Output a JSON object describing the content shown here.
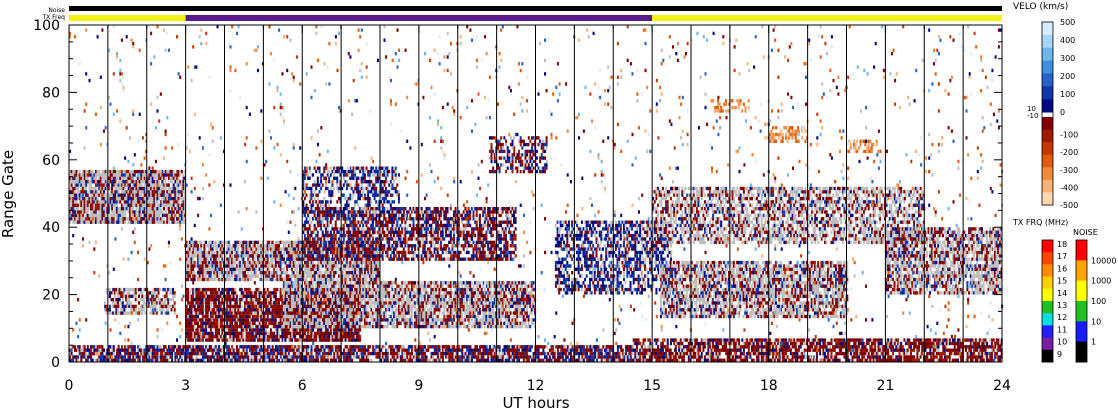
{
  "chart_data": {
    "type": "heatmap",
    "xlabel": "UT hours",
    "ylabel": "Range Gate",
    "xlim": [
      0,
      24
    ],
    "ylim": [
      0,
      100
    ],
    "x_ticks": [
      0,
      3,
      6,
      9,
      12,
      15,
      18,
      21,
      24
    ],
    "y_ticks": [
      0,
      20,
      40,
      60,
      80,
      100
    ],
    "x_minor_step": 1,
    "y_minor_step": 5,
    "scan_lines_ut": [
      1,
      2,
      3,
      4,
      5,
      6,
      7,
      8,
      9,
      10,
      11,
      12,
      13,
      14,
      15,
      16,
      17,
      18,
      19,
      20,
      21,
      22,
      23
    ],
    "grid": false,
    "header_bars": {
      "noise_label": "Noise",
      "txfreq_label": "TX Freq",
      "noise_segments": [
        {
          "start": 0,
          "end": 24,
          "color": "#000000"
        }
      ],
      "txfreq_segments": [
        {
          "start": 0,
          "end": 3,
          "color": "#f2f20a"
        },
        {
          "start": 3,
          "end": 15,
          "color": "#5a1a8c"
        },
        {
          "start": 15,
          "end": 24,
          "color": "#f2f20a"
        }
      ]
    },
    "regions": [
      {
        "x0": 0.0,
        "x1": 3.0,
        "y0": 41,
        "y1": 57,
        "kind": "mixed",
        "density": 0.9
      },
      {
        "x0": 0.9,
        "x1": 2.7,
        "y0": 14,
        "y1": 22,
        "kind": "mixed",
        "density": 0.7
      },
      {
        "x0": 0.0,
        "x1": 14.5,
        "y0": 0,
        "y1": 5,
        "kind": "redblue",
        "density": 0.8
      },
      {
        "x0": 14.5,
        "x1": 24.0,
        "y0": 0,
        "y1": 7,
        "kind": "red",
        "density": 0.75
      },
      {
        "x0": 3.0,
        "x1": 8.0,
        "y0": 24,
        "y1": 36,
        "kind": "mixed",
        "density": 0.85
      },
      {
        "x0": 3.0,
        "x1": 7.5,
        "y0": 6,
        "y1": 22,
        "kind": "red",
        "density": 0.85
      },
      {
        "x0": 5.5,
        "x1": 12.0,
        "y0": 10,
        "y1": 24,
        "kind": "mixed",
        "density": 0.8
      },
      {
        "x0": 6.0,
        "x1": 11.5,
        "y0": 30,
        "y1": 46,
        "kind": "redblue",
        "density": 0.65
      },
      {
        "x0": 6.0,
        "x1": 8.5,
        "y0": 42,
        "y1": 58,
        "kind": "blue",
        "density": 0.5
      },
      {
        "x0": 10.8,
        "x1": 12.3,
        "y0": 56,
        "y1": 67,
        "kind": "redblue",
        "density": 0.5
      },
      {
        "x0": 12.5,
        "x1": 15.5,
        "y0": 20,
        "y1": 42,
        "kind": "blue",
        "density": 0.55
      },
      {
        "x0": 15.0,
        "x1": 22.0,
        "y0": 35,
        "y1": 52,
        "kind": "mixed",
        "density": 0.6
      },
      {
        "x0": 15.2,
        "x1": 20.0,
        "y0": 13,
        "y1": 30,
        "kind": "mixed",
        "density": 0.75
      },
      {
        "x0": 21.0,
        "x1": 24.0,
        "y0": 20,
        "y1": 40,
        "kind": "mixed",
        "density": 0.75
      },
      {
        "x0": 18.0,
        "x1": 19.0,
        "y0": 65,
        "y1": 70,
        "kind": "orange",
        "density": 0.5
      },
      {
        "x0": 16.5,
        "x1": 17.5,
        "y0": 74,
        "y1": 78,
        "kind": "orange",
        "density": 0.4
      },
      {
        "x0": 20.0,
        "x1": 20.8,
        "y0": 62,
        "y1": 66,
        "kind": "orange",
        "density": 0.4
      },
      {
        "x0": 0.0,
        "x1": 24.0,
        "y0": 0,
        "y1": 100,
        "kind": "sparse",
        "density": 0.025
      }
    ],
    "velocity_colorbar": {
      "title": "VELO (km/s)",
      "positive_ticks": [
        500,
        400,
        300,
        200,
        100,
        0
      ],
      "negative_ticks": [
        -100,
        -200,
        -300,
        -400,
        -500
      ],
      "gap_labels": [
        "10",
        "-10"
      ],
      "positive_colors": [
        "#d8ecff",
        "#a8d4f8",
        "#6fb4ec",
        "#3f8fdc",
        "#2564c4",
        "#1236a8",
        "#000a80"
      ],
      "negative_colors": [
        "#800000",
        "#a01a00",
        "#c43800",
        "#e05c10",
        "#ef8a3c",
        "#f8b278",
        "#fdd8b0"
      ]
    },
    "txfreq_colorbar": {
      "title": "TX FRQ (MHz)",
      "ticks": [
        "18",
        "17",
        "16",
        "15",
        "14",
        "13",
        "12",
        "11",
        "10",
        "9"
      ],
      "colors": [
        "#ff0000",
        "#ff4500",
        "#ff8c00",
        "#ffd000",
        "#ffff00",
        "#20c020",
        "#00e0e0",
        "#2020ff",
        "#7a1fa0",
        "#000000"
      ]
    },
    "noise_colorbar": {
      "title": "NOISE",
      "ticks": [
        "10000",
        "1000",
        "100",
        "10",
        "1"
      ],
      "colors": [
        "#ff0000",
        "#ffa500",
        "#ffff00",
        "#20c020",
        "#1a1aff",
        "#000000"
      ]
    }
  },
  "colors": {
    "ground_scatter": "#bebebe",
    "scan_line": "#000000"
  }
}
